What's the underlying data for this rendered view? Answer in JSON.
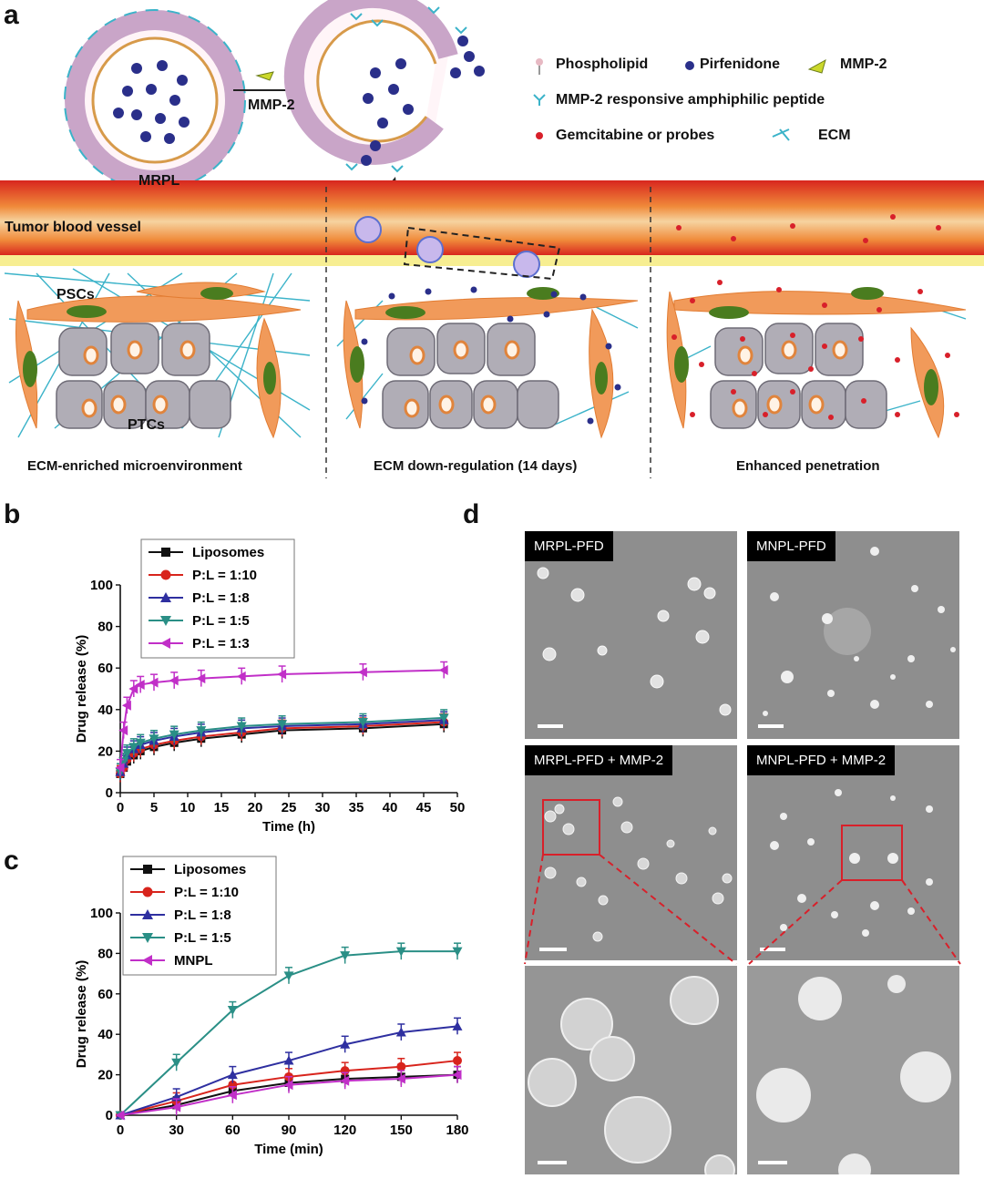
{
  "panels": {
    "a": "a",
    "b": "b",
    "c": "c",
    "d": "d"
  },
  "schematic": {
    "mrpl_label": "MRPL",
    "mmp2_arrow_label": "MMP-2",
    "legend": {
      "phospholipid": "Phospholipid",
      "pirfenidone": "Pirfenidone",
      "mmp2": "MMP-2",
      "peptide": "MMP-2 responsive amphiphilic peptide",
      "gemcitabine": "Gemcitabine or probes",
      "ecm": "ECM"
    },
    "vessel_label": "Tumor blood vessel",
    "pscs_label": "PSCs",
    "ptcs_label": "PTCs",
    "stage_labels": [
      "ECM-enriched microenvironment",
      "ECM down-regulation (14 days)",
      "Enhanced penetration"
    ],
    "colors": {
      "vessel": "#e0442c",
      "stroma": "#f19a5a",
      "cell": "#b0adb6",
      "nucleus": "#4a7c1f",
      "drug": "#1f2a7a",
      "probe": "#d8202a",
      "ecm": "#3bb3c9"
    }
  },
  "chart_data": [
    {
      "type": "line",
      "panel": "b",
      "xlabel": "Time (h)",
      "ylabel": "Drug release (%)",
      "xlim": [
        0,
        50
      ],
      "ylim": [
        0,
        100
      ],
      "xticks": [
        0,
        5,
        10,
        15,
        20,
        25,
        30,
        35,
        40,
        45,
        50
      ],
      "yticks": [
        0,
        20,
        40,
        60,
        80,
        100
      ],
      "x": [
        0,
        0.5,
        1,
        2,
        3,
        5,
        8,
        12,
        18,
        24,
        36,
        48
      ],
      "legend_position": "top-left",
      "series": [
        {
          "name": "Liposomes",
          "color": "#111111",
          "marker": "square",
          "values": [
            9,
            12,
            15,
            18,
            20,
            22,
            24,
            26,
            28,
            30,
            31,
            33
          ]
        },
        {
          "name": "P:L = 1:10",
          "color": "#d8241c",
          "marker": "circle",
          "values": [
            9,
            12,
            16,
            19,
            21,
            23,
            25,
            27,
            29,
            31,
            32,
            34
          ]
        },
        {
          "name": "P:L = 1:8",
          "color": "#2e2fa0",
          "marker": "triangle-up",
          "values": [
            10,
            14,
            18,
            21,
            23,
            25,
            27,
            29,
            31,
            32,
            33,
            35
          ]
        },
        {
          "name": "P:L = 1:5",
          "color": "#2a8f86",
          "marker": "triangle-down",
          "values": [
            10,
            15,
            19,
            22,
            24,
            26,
            28,
            30,
            32,
            33,
            34,
            36
          ]
        },
        {
          "name": "P:L = 1:3",
          "color": "#c12fc8",
          "marker": "triangle-left",
          "values": [
            12,
            30,
            42,
            50,
            52,
            53,
            54,
            55,
            56,
            57,
            58,
            59
          ]
        }
      ]
    },
    {
      "type": "line",
      "panel": "c",
      "xlabel": "Time (min)",
      "ylabel": "Drug release (%)",
      "xlim": [
        0,
        180
      ],
      "ylim": [
        0,
        100
      ],
      "xticks": [
        0,
        30,
        60,
        90,
        120,
        150,
        180
      ],
      "yticks": [
        0,
        20,
        40,
        60,
        80,
        100
      ],
      "x": [
        0,
        30,
        60,
        90,
        120,
        150,
        180
      ],
      "legend_position": "top-left",
      "series": [
        {
          "name": "Liposomes",
          "color": "#111111",
          "marker": "square",
          "values": [
            0,
            5,
            12,
            16,
            18,
            19,
            20
          ]
        },
        {
          "name": "P:L = 1:10",
          "color": "#d8241c",
          "marker": "circle",
          "values": [
            0,
            7,
            15,
            19,
            22,
            24,
            27
          ]
        },
        {
          "name": "P:L = 1:8",
          "color": "#2e2fa0",
          "marker": "triangle-up",
          "values": [
            0,
            9,
            20,
            27,
            35,
            41,
            44
          ]
        },
        {
          "name": "P:L = 1:5",
          "color": "#2a8f86",
          "marker": "triangle-down",
          "values": [
            0,
            26,
            52,
            69,
            79,
            81,
            81
          ]
        },
        {
          "name": "MNPL",
          "color": "#c12fc8",
          "marker": "triangle-left",
          "values": [
            0,
            4,
            10,
            15,
            17,
            18,
            20
          ]
        }
      ]
    }
  ],
  "tem": {
    "labels": [
      "MRPL-PFD",
      "MNPL-PFD",
      "MRPL-PFD + MMP-2",
      "MNPL-PFD + MMP-2"
    ]
  }
}
